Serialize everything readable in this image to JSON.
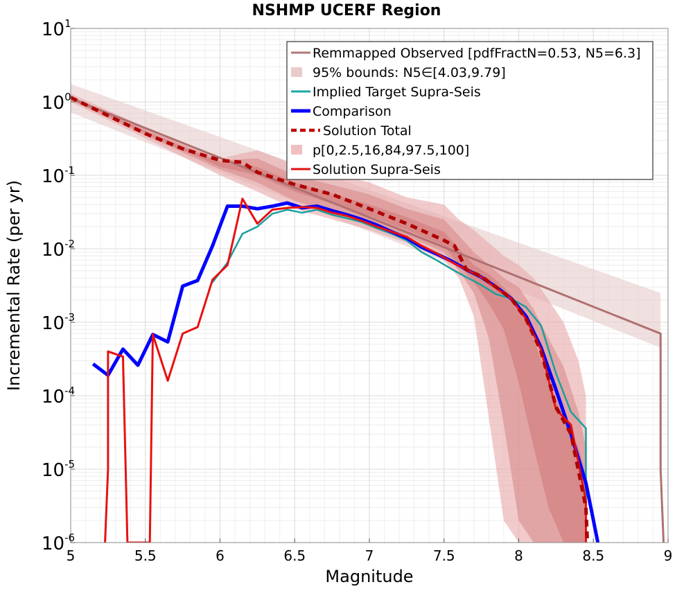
{
  "chart_data": {
    "type": "line",
    "title": "NSHMP UCERF Region",
    "xlabel": "Magnitude",
    "ylabel": "Incremental Rate (per yr)",
    "xlim": [
      5,
      9
    ],
    "ylim": [
      1e-06,
      10
    ],
    "yscale": "log",
    "grid": true,
    "legend_position": "top-right",
    "x_ticks": [
      {
        "value": 5,
        "label": "5"
      },
      {
        "value": 5.5,
        "label": "5.5"
      },
      {
        "value": 6,
        "label": "6"
      },
      {
        "value": 6.5,
        "label": "6.5"
      },
      {
        "value": 7,
        "label": "7"
      },
      {
        "value": 7.5,
        "label": "7.5"
      },
      {
        "value": 8,
        "label": "8"
      },
      {
        "value": 8.5,
        "label": "8.5"
      },
      {
        "value": 9,
        "label": "9"
      }
    ],
    "y_ticks": [
      {
        "value": 10,
        "base": "10",
        "exp": "1"
      },
      {
        "value": 1,
        "base": "10",
        "exp": "0"
      },
      {
        "value": 0.1,
        "base": "10",
        "exp": "-1"
      },
      {
        "value": 0.01,
        "base": "10",
        "exp": "-2"
      },
      {
        "value": 0.001,
        "base": "10",
        "exp": "-3"
      },
      {
        "value": 0.0001,
        "base": "10",
        "exp": "-4"
      },
      {
        "value": 1e-05,
        "base": "10",
        "exp": "-5"
      },
      {
        "value": 1e-06,
        "base": "10",
        "exp": "-6"
      }
    ],
    "legend": [
      {
        "name": "Remmapped Observed [pdfFractN=0.53, N5=6.3]",
        "color": "#b07878",
        "style": "line"
      },
      {
        "name": "95% bounds: N5∈[4.03,9.79]",
        "color": "#e8cccc",
        "style": "band"
      },
      {
        "name": "Implied Target Supra-Seis",
        "color": "#1aa8a8",
        "style": "line"
      },
      {
        "name": "Comparison",
        "color": "#0000ff",
        "style": "thick"
      },
      {
        "name": "Solution Total",
        "color": "#c00000",
        "style": "dashed"
      },
      {
        "name": "p[0,2.5,16,84,97.5,100]",
        "color": "#f0c0c0",
        "style": "band"
      },
      {
        "name": "Solution Supra-Seis",
        "color": "#e01010",
        "style": "line"
      }
    ],
    "bands": [
      {
        "name": "95% bounds: N5∈[4.03,9.79]",
        "color": "#e6cccc",
        "x": [
          5.0,
          8.95
        ],
        "low": [
          0.72,
          0.00045
        ],
        "high": [
          1.75,
          0.0025
        ]
      },
      {
        "name": "p[0,2.5,16,84,97.5,100]",
        "color": "#e8a8a8",
        "x": [
          5.0,
          5.5,
          6.0,
          6.25,
          6.5,
          7.0,
          7.25,
          7.5,
          7.6,
          7.7,
          7.8,
          7.9,
          8.0,
          8.1,
          8.2,
          8.3,
          8.4,
          8.45
        ],
        "low": [
          1.0,
          0.32,
          0.1,
          0.06,
          0.035,
          0.018,
          0.012,
          0.007,
          0.004,
          0.0012,
          5e-05,
          2e-06,
          1e-06,
          1e-06,
          1e-06,
          1e-06,
          1e-06,
          1e-06
        ],
        "high": [
          1.3,
          0.45,
          0.17,
          0.22,
          0.14,
          0.08,
          0.05,
          0.04,
          0.025,
          0.018,
          0.012,
          0.008,
          0.006,
          0.004,
          0.002,
          0.001,
          0.0003,
          0.0001
        ]
      },
      {
        "name": "p[0,2.5,16,84,97.5,100]",
        "color": "#d88c8c",
        "x": [
          5.0,
          5.5,
          6.0,
          6.25,
          6.5,
          7.0,
          7.25,
          7.5,
          7.6,
          7.7,
          7.8,
          7.9,
          8.0,
          8.1,
          8.2,
          8.3,
          8.4,
          8.45
        ],
        "low": [
          1.05,
          0.35,
          0.12,
          0.08,
          0.045,
          0.022,
          0.015,
          0.009,
          0.005,
          0.0025,
          0.0006,
          4e-05,
          2e-06,
          1e-06,
          1e-06,
          1e-06,
          1e-06,
          1e-06
        ],
        "high": [
          1.2,
          0.42,
          0.16,
          0.17,
          0.1,
          0.055,
          0.035,
          0.025,
          0.015,
          0.009,
          0.006,
          0.004,
          0.003,
          0.0015,
          0.0006,
          0.00025,
          6e-05,
          2e-05
        ]
      },
      {
        "name": "p[0,2.5,16,84,97.5,100]",
        "color": "#d07a7a",
        "x": [
          5.0,
          5.5,
          6.0,
          6.25,
          6.5,
          7.0,
          7.25,
          7.5,
          7.6,
          7.7,
          7.8,
          7.9,
          8.0,
          8.1,
          8.2,
          8.3,
          8.4,
          8.45
        ],
        "low": [
          1.08,
          0.37,
          0.13,
          0.1,
          0.06,
          0.028,
          0.018,
          0.011,
          0.006,
          0.0035,
          0.0018,
          0.0008,
          0.00015,
          2e-05,
          3e-06,
          1e-06,
          1e-06,
          1e-06
        ],
        "high": [
          1.15,
          0.4,
          0.15,
          0.13,
          0.08,
          0.04,
          0.027,
          0.017,
          0.01,
          0.006,
          0.0045,
          0.003,
          0.0018,
          0.0006,
          0.00015,
          5e-05,
          2e-05,
          8e-06
        ]
      }
    ],
    "series": [
      {
        "name": "Remmapped Observed [pdfFractN=0.53, N5=6.3]",
        "color": "#b07070",
        "width": 3,
        "dash": "",
        "x": [
          5.0,
          8.95,
          8.95,
          8.97
        ],
        "y": [
          1.12,
          0.0007,
          1e-05,
          1e-06
        ]
      },
      {
        "name": "Implied Target Supra-Seis",
        "color": "#1a9e9e",
        "width": 2.5,
        "dash": "",
        "x": [
          5.95,
          6.05,
          6.15,
          6.25,
          6.35,
          6.45,
          6.55,
          6.65,
          6.75,
          6.85,
          6.95,
          7.05,
          7.15,
          7.25,
          7.35,
          7.45,
          7.55,
          7.65,
          7.75,
          7.85,
          7.95,
          8.05,
          8.15,
          8.25,
          8.35,
          8.45,
          8.45
        ],
        "y": [
          0.0035,
          0.0065,
          0.016,
          0.02,
          0.03,
          0.034,
          0.031,
          0.034,
          0.029,
          0.026,
          0.023,
          0.019,
          0.016,
          0.013,
          0.009,
          0.007,
          0.0053,
          0.0041,
          0.0032,
          0.0024,
          0.0021,
          0.0016,
          0.0009,
          0.0002,
          6e-05,
          3.6e-05,
          1e-06
        ]
      },
      {
        "name": "Comparison",
        "color": "#0000ff",
        "width": 5,
        "dash": "",
        "x": [
          5.15,
          5.25,
          5.35,
          5.45,
          5.55,
          5.65,
          5.75,
          5.85,
          5.95,
          6.05,
          6.15,
          6.25,
          6.35,
          6.45,
          6.55,
          6.65,
          6.75,
          6.85,
          6.95,
          7.05,
          7.15,
          7.25,
          7.35,
          7.45,
          7.55,
          7.65,
          7.75,
          7.85,
          7.95,
          8.05,
          8.15,
          8.25,
          8.35,
          8.45,
          8.53
        ],
        "y": [
          0.00027,
          0.00019,
          0.00043,
          0.00026,
          0.00068,
          0.00054,
          0.0031,
          0.0037,
          0.011,
          0.038,
          0.038,
          0.035,
          0.038,
          0.042,
          0.036,
          0.038,
          0.033,
          0.029,
          0.025,
          0.021,
          0.017,
          0.014,
          0.0105,
          0.0085,
          0.0068,
          0.0052,
          0.0041,
          0.003,
          0.0021,
          0.0012,
          0.00045,
          0.00012,
          3e-05,
          6.5e-06,
          1e-06
        ]
      },
      {
        "name": "Solution Supra-Seis",
        "color": "#e81010",
        "width": 3,
        "dash": "",
        "x": [
          5.23,
          5.25,
          5.25,
          5.35,
          5.38,
          5.53,
          5.55,
          5.65,
          5.75,
          5.85,
          5.95,
          6.05,
          6.15,
          6.25,
          6.35,
          6.45,
          6.55,
          6.65,
          6.75,
          6.85,
          6.95,
          7.05,
          7.15,
          7.25,
          7.35,
          7.45,
          7.55,
          7.65,
          7.75,
          7.85,
          7.95,
          8.05,
          8.15,
          8.25,
          8.35,
          8.45,
          8.45
        ],
        "y": [
          1e-06,
          1e-05,
          0.0004,
          0.00034,
          1e-06,
          1e-06,
          0.00068,
          0.00016,
          0.0007,
          0.00086,
          0.0038,
          0.006,
          0.048,
          0.022,
          0.034,
          0.036,
          0.037,
          0.036,
          0.031,
          0.028,
          0.024,
          0.02,
          0.017,
          0.0145,
          0.011,
          0.0087,
          0.0066,
          0.0052,
          0.0041,
          0.0029,
          0.0021,
          0.0011,
          0.00042,
          6.5e-05,
          4e-05,
          3.7e-06,
          1e-06
        ]
      },
      {
        "name": "Solution Total",
        "color": "#b00000",
        "width": 5,
        "dash": "10,7",
        "x": [
          5.0,
          5.25,
          5.5,
          5.75,
          6.0,
          6.15,
          6.25,
          6.5,
          6.75,
          7.0,
          7.25,
          7.5,
          7.57,
          7.65,
          7.75,
          7.85,
          7.95,
          8.05,
          8.15,
          8.25,
          8.35,
          8.45,
          8.46
        ],
        "y": [
          1.15,
          0.65,
          0.37,
          0.23,
          0.16,
          0.15,
          0.11,
          0.075,
          0.055,
          0.035,
          0.022,
          0.013,
          0.011,
          0.0052,
          0.0042,
          0.003,
          0.0021,
          0.0011,
          0.0004,
          7e-05,
          3e-05,
          3e-06,
          1e-06
        ]
      }
    ]
  }
}
